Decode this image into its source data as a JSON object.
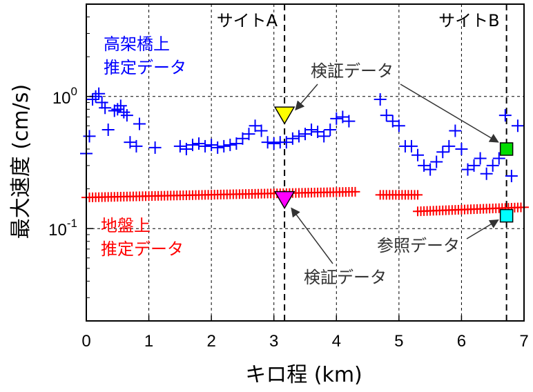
{
  "chart_data": {
    "type": "scatter",
    "xlabel": "キロ程 (km)",
    "ylabel": "最大速度 (cm/s)",
    "xlim": [
      0,
      7
    ],
    "ylim": [
      0.02,
      5
    ],
    "yscale": "log",
    "x_ticks": [
      "0",
      "1",
      "2",
      "3",
      "4",
      "5",
      "6",
      "7"
    ],
    "y_ticks": [
      {
        "value": 1,
        "base": "10",
        "exp": "0"
      },
      {
        "value": 0.1,
        "base": "10",
        "exp": "-1"
      }
    ],
    "grid": true,
    "sites": [
      {
        "name": "サイトA",
        "x": 3.17
      },
      {
        "name": "サイトB",
        "x": 6.72
      }
    ],
    "series": [
      {
        "name": "高架橋上\n推定データ",
        "color": "#0000ff",
        "marker": "plus",
        "x": [
          0.0,
          0.05,
          0.1,
          0.15,
          0.2,
          0.25,
          0.3,
          0.35,
          0.45,
          0.5,
          0.55,
          0.6,
          0.65,
          0.7,
          0.8,
          0.85,
          1.1,
          1.5,
          1.6,
          1.7,
          1.8,
          1.9,
          2.0,
          2.1,
          2.2,
          2.3,
          2.4,
          2.5,
          2.6,
          2.7,
          2.8,
          2.9,
          3.0,
          3.1,
          3.2,
          3.3,
          3.4,
          3.5,
          3.6,
          3.7,
          3.8,
          3.9,
          4.0,
          4.1,
          4.2,
          4.7,
          4.8,
          4.9,
          5.0,
          5.1,
          5.2,
          5.3,
          5.4,
          5.5,
          5.6,
          5.7,
          5.8,
          5.9,
          6.0,
          6.1,
          6.2,
          6.3,
          6.4,
          6.5,
          6.6,
          6.7,
          6.8,
          6.9
        ],
        "y": [
          0.37,
          0.5,
          0.95,
          1.0,
          1.05,
          0.9,
          0.82,
          0.56,
          0.78,
          0.8,
          0.85,
          0.76,
          0.72,
          0.45,
          0.42,
          0.62,
          0.41,
          0.42,
          0.4,
          0.43,
          0.44,
          0.42,
          0.43,
          0.41,
          0.42,
          0.43,
          0.44,
          0.48,
          0.52,
          0.6,
          0.55,
          0.45,
          0.44,
          0.45,
          0.45,
          0.48,
          0.5,
          0.52,
          0.56,
          0.54,
          0.5,
          0.56,
          0.68,
          0.7,
          0.65,
          0.95,
          0.72,
          0.65,
          0.6,
          0.42,
          0.42,
          0.36,
          0.3,
          0.28,
          0.32,
          0.38,
          0.42,
          0.55,
          0.4,
          0.28,
          0.3,
          0.34,
          0.26,
          0.3,
          0.34,
          0.72,
          0.25,
          0.6
        ]
      },
      {
        "name": "地盤上\n推定データ",
        "color": "#ff0000",
        "marker": "plus",
        "segments": [
          {
            "x0": 0.0,
            "x1": 4.3,
            "y0": 0.172,
            "y1": 0.19
          },
          {
            "x0": 4.7,
            "x1": 5.3,
            "y0": 0.18,
            "y1": 0.18
          },
          {
            "x0": 5.3,
            "x1": 7.0,
            "y0": 0.135,
            "y1": 0.145
          }
        ]
      }
    ],
    "verification_points": [
      {
        "x": 3.17,
        "y": 0.72,
        "color": "#ffff00",
        "marker": "triangle-down"
      },
      {
        "x": 3.17,
        "y": 0.165,
        "color": "#ff00ff",
        "marker": "triangle-down"
      },
      {
        "x": 6.72,
        "y": 0.4,
        "color": "#00dd00",
        "marker": "square"
      }
    ],
    "reference_points": [
      {
        "x": 6.72,
        "y": 0.125,
        "color": "#00ffff",
        "marker": "square"
      }
    ],
    "annotations": {
      "verification_top": "検証データ",
      "verification_bottom": "検証データ",
      "reference": "参照データ"
    }
  }
}
